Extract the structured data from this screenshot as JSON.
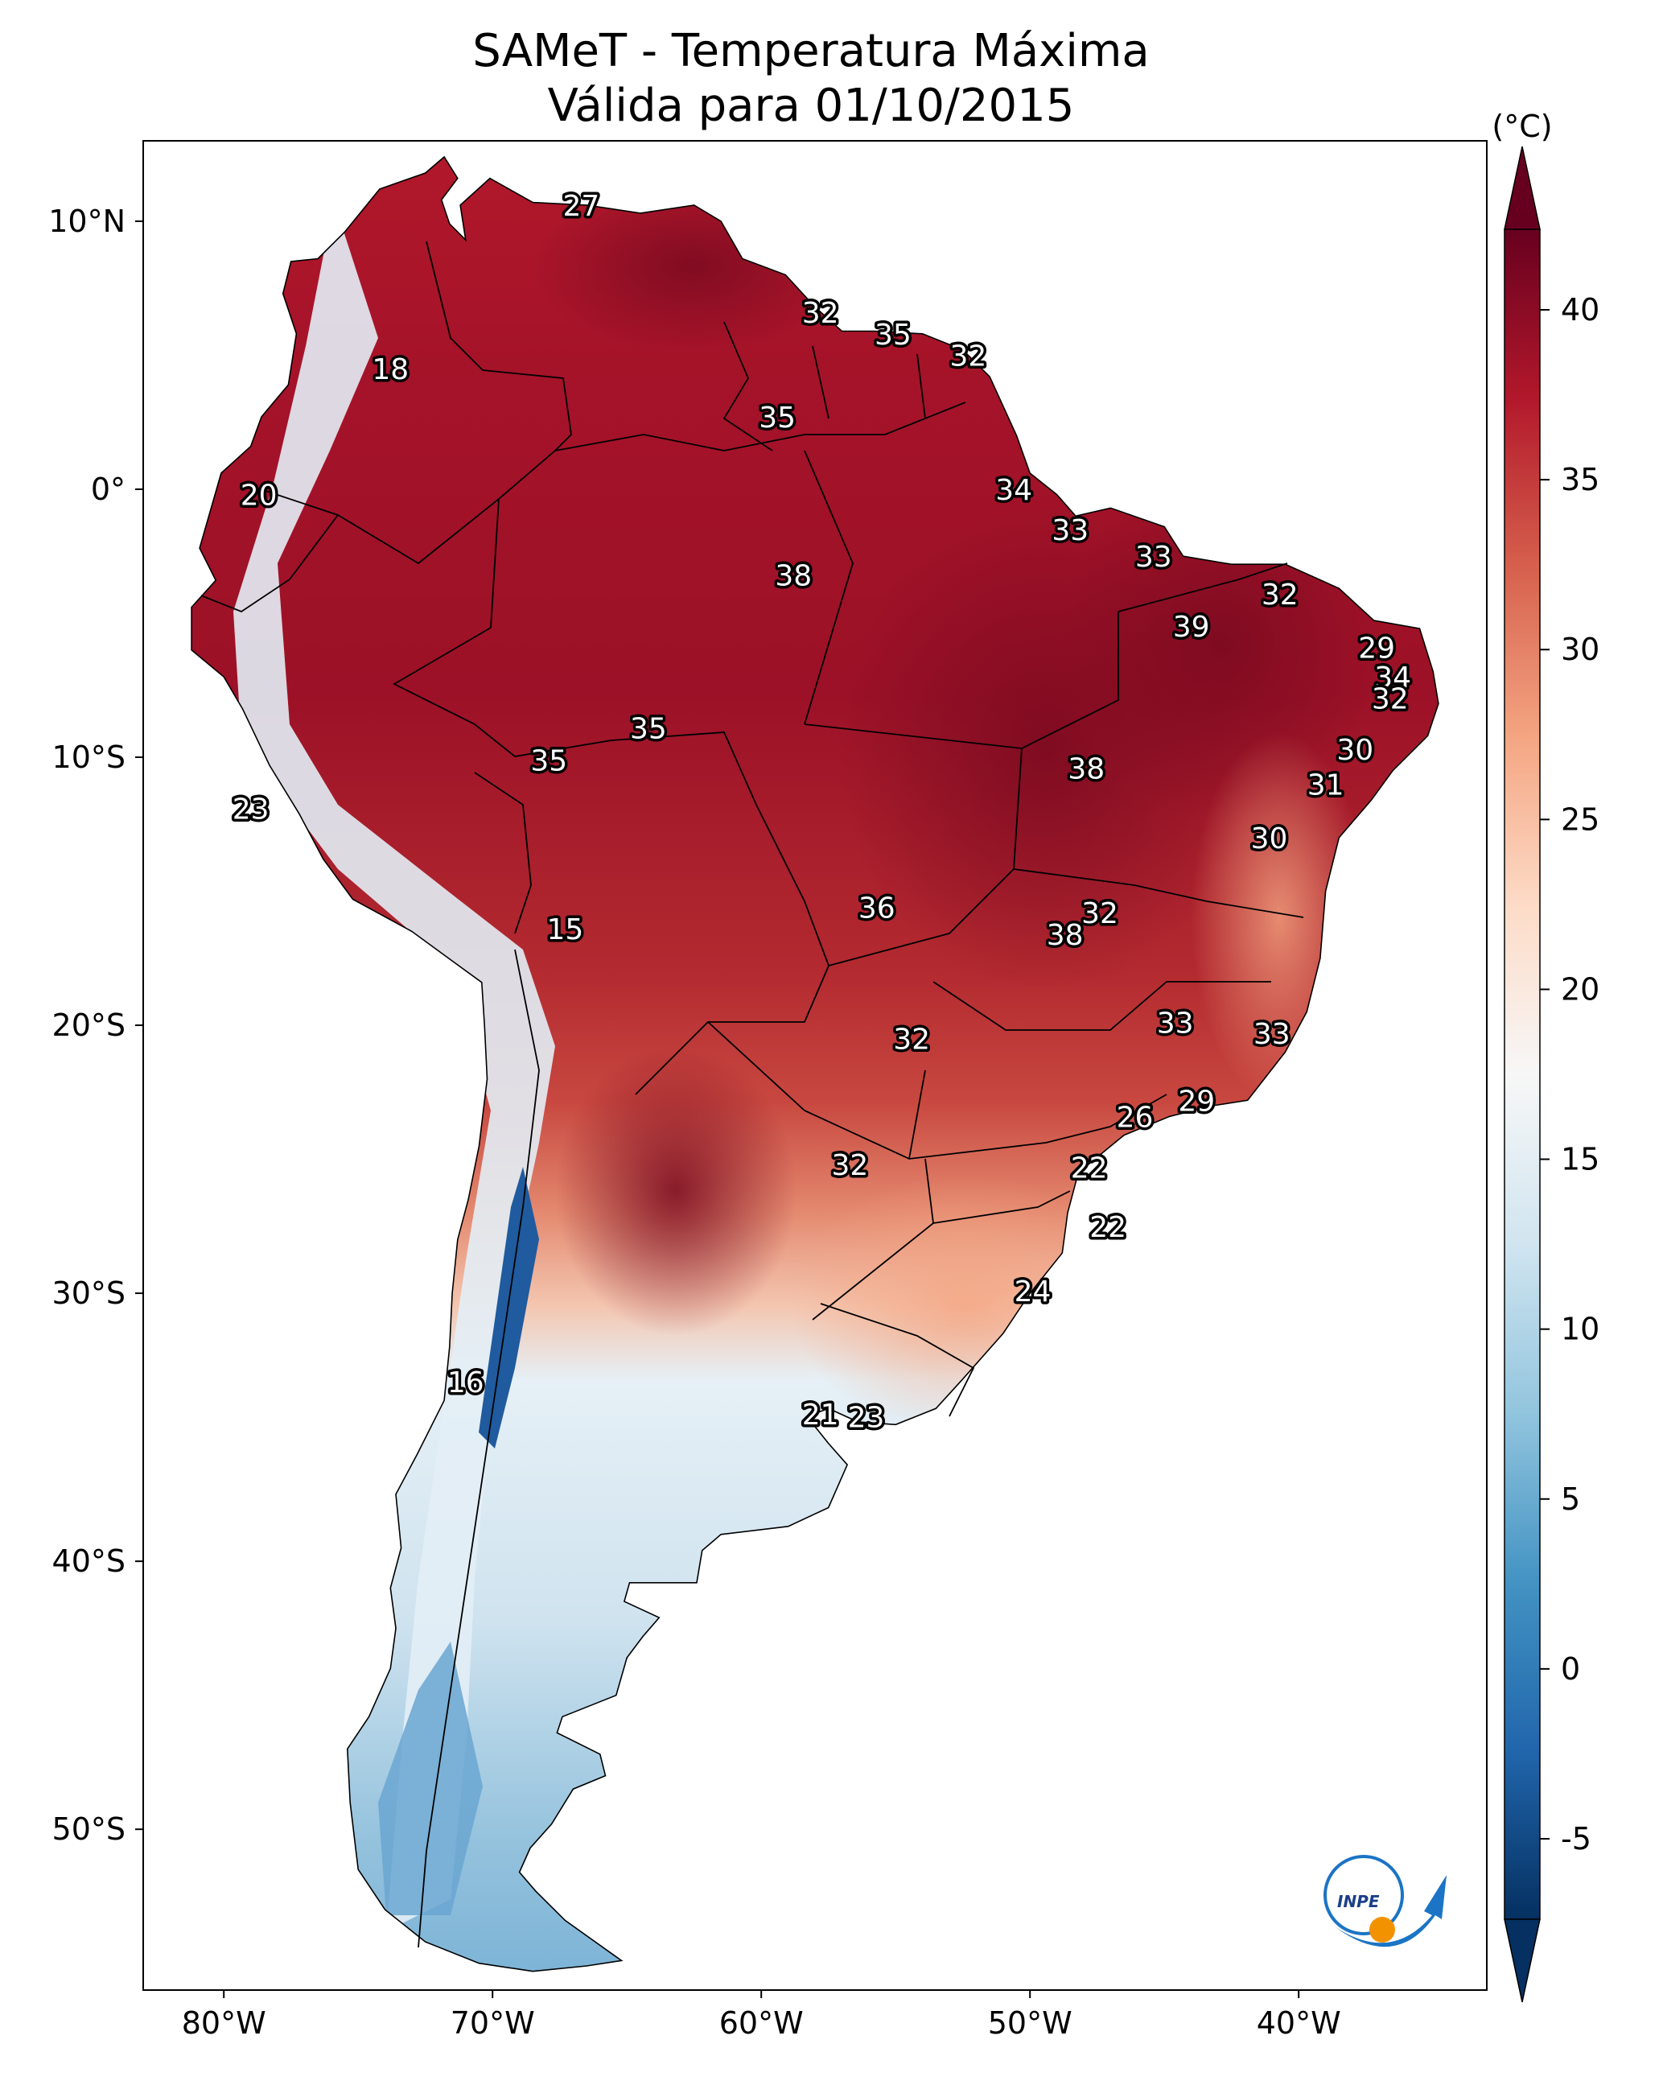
{
  "title": {
    "line1": "SAMeT - Temperatura Máxima",
    "line2": "Válida para 01/10/2015"
  },
  "chart_data": {
    "type": "heatmap",
    "title": "SAMeT - Temperatura Máxima — Válida para 01/10/2015",
    "variable": "Temperatura Máxima",
    "date": "01/10/2015",
    "units": "(°C)",
    "colorbar": {
      "label": "(°C)",
      "range": [
        -5,
        40
      ],
      "ticks": [
        "40",
        "35",
        "30",
        "25",
        "20",
        "15",
        "10",
        "5",
        "0",
        "-5"
      ],
      "colors": [
        "#053061",
        "#2166ac",
        "#4393c3",
        "#92c5de",
        "#d1e5f0",
        "#f7f7f7",
        "#fddbc7",
        "#f4a582",
        "#d6604d",
        "#b2182b",
        "#67001f"
      ]
    },
    "lon_ticks": [
      "80°W",
      "70°W",
      "60°W",
      "50°W",
      "40°W"
    ],
    "lat_ticks": [
      "10°N",
      "0°",
      "10°S",
      "20°S",
      "30°S",
      "40°S",
      "50°S"
    ],
    "extent": {
      "lon": [
        -83,
        -33
      ],
      "lat": [
        -56,
        13
      ]
    },
    "labels": [
      {
        "lon": -66.7,
        "lat": 10.6,
        "value": "27"
      },
      {
        "lon": -73.8,
        "lat": 4.5,
        "value": "18"
      },
      {
        "lon": -57.8,
        "lat": 6.6,
        "value": "32"
      },
      {
        "lon": -55.1,
        "lat": 5.8,
        "value": "35"
      },
      {
        "lon": -52.3,
        "lat": 5.0,
        "value": "32"
      },
      {
        "lon": -59.4,
        "lat": 2.7,
        "value": "35"
      },
      {
        "lon": -78.7,
        "lat": -0.2,
        "value": "20"
      },
      {
        "lon": -50.6,
        "lat": 0.0,
        "value": "34"
      },
      {
        "lon": -48.5,
        "lat": -1.5,
        "value": "33"
      },
      {
        "lon": -45.4,
        "lat": -2.5,
        "value": "33"
      },
      {
        "lon": -58.8,
        "lat": -3.2,
        "value": "38"
      },
      {
        "lon": -40.7,
        "lat": -3.9,
        "value": "32"
      },
      {
        "lon": -44.0,
        "lat": -5.1,
        "value": "39"
      },
      {
        "lon": -37.1,
        "lat": -5.9,
        "value": "29"
      },
      {
        "lon": -36.5,
        "lat": -7.0,
        "value": "34"
      },
      {
        "lon": -36.6,
        "lat": -7.8,
        "value": "32"
      },
      {
        "lon": -64.2,
        "lat": -8.9,
        "value": "35"
      },
      {
        "lon": -67.9,
        "lat": -10.1,
        "value": "35"
      },
      {
        "lon": -37.9,
        "lat": -9.7,
        "value": "30"
      },
      {
        "lon": -47.9,
        "lat": -10.4,
        "value": "38"
      },
      {
        "lon": -39.0,
        "lat": -11.0,
        "value": "31"
      },
      {
        "lon": -79.0,
        "lat": -11.9,
        "value": "23"
      },
      {
        "lon": -41.1,
        "lat": -13.0,
        "value": "30"
      },
      {
        "lon": -67.3,
        "lat": -16.4,
        "value": "15"
      },
      {
        "lon": -55.7,
        "lat": -15.6,
        "value": "36"
      },
      {
        "lon": -47.4,
        "lat": -15.8,
        "value": "32"
      },
      {
        "lon": -48.7,
        "lat": -16.6,
        "value": "38"
      },
      {
        "lon": -44.6,
        "lat": -19.9,
        "value": "33"
      },
      {
        "lon": -41.0,
        "lat": -20.3,
        "value": "33"
      },
      {
        "lon": -54.4,
        "lat": -20.5,
        "value": "32"
      },
      {
        "lon": -43.8,
        "lat": -22.8,
        "value": "29"
      },
      {
        "lon": -46.1,
        "lat": -23.4,
        "value": "26"
      },
      {
        "lon": -56.7,
        "lat": -25.2,
        "value": "32"
      },
      {
        "lon": -47.8,
        "lat": -25.3,
        "value": "22"
      },
      {
        "lon": -47.1,
        "lat": -27.5,
        "value": "22"
      },
      {
        "lon": -49.9,
        "lat": -29.9,
        "value": "24"
      },
      {
        "lon": -71.0,
        "lat": -33.3,
        "value": "16"
      },
      {
        "lon": -57.8,
        "lat": -34.5,
        "value": "21"
      },
      {
        "lon": -56.1,
        "lat": -34.6,
        "value": "23"
      }
    ]
  },
  "logo": {
    "text": "INPE"
  }
}
